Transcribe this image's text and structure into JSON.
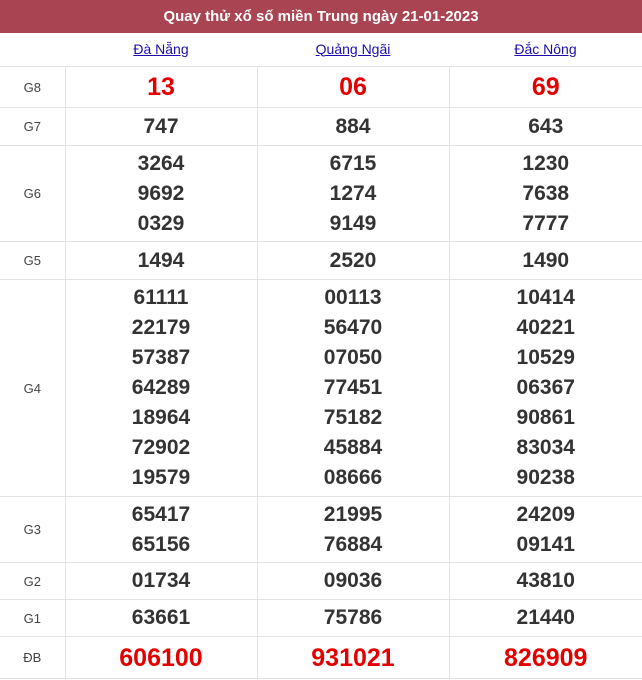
{
  "title": "Quay thử xổ số miền Trung ngày 21-01-2023",
  "provinces": [
    "Đà Nẵng",
    "Quảng Ngãi",
    "Đắc Nông"
  ],
  "colors": {
    "header_bg": "#a94452",
    "highlight": "#e50000",
    "link": "#1a0dab"
  },
  "rows": [
    {
      "label": "G8",
      "red": true,
      "values": [
        [
          "13"
        ],
        [
          "06"
        ],
        [
          "69"
        ]
      ]
    },
    {
      "label": "G7",
      "values": [
        [
          "747"
        ],
        [
          "884"
        ],
        [
          "643"
        ]
      ]
    },
    {
      "label": "G6",
      "values": [
        [
          "3264",
          "9692",
          "0329"
        ],
        [
          "6715",
          "1274",
          "9149"
        ],
        [
          "1230",
          "7638",
          "7777"
        ]
      ]
    },
    {
      "label": "G5",
      "values": [
        [
          "1494"
        ],
        [
          "2520"
        ],
        [
          "1490"
        ]
      ]
    },
    {
      "label": "G4",
      "values": [
        [
          "61111",
          "22179",
          "57387",
          "64289",
          "18964",
          "72902",
          "19579"
        ],
        [
          "00113",
          "56470",
          "07050",
          "77451",
          "75182",
          "45884",
          "08666"
        ],
        [
          "10414",
          "40221",
          "10529",
          "06367",
          "90861",
          "83034",
          "90238"
        ]
      ]
    },
    {
      "label": "G3",
      "values": [
        [
          "65417",
          "65156"
        ],
        [
          "21995",
          "76884"
        ],
        [
          "24209",
          "09141"
        ]
      ]
    },
    {
      "label": "G2",
      "values": [
        [
          "01734"
        ],
        [
          "09036"
        ],
        [
          "43810"
        ]
      ]
    },
    {
      "label": "G1",
      "values": [
        [
          "63661"
        ],
        [
          "75786"
        ],
        [
          "21440"
        ]
      ]
    },
    {
      "label": "ĐB",
      "red": true,
      "values": [
        [
          "606100"
        ],
        [
          "931021"
        ],
        [
          "826909"
        ]
      ]
    }
  ]
}
